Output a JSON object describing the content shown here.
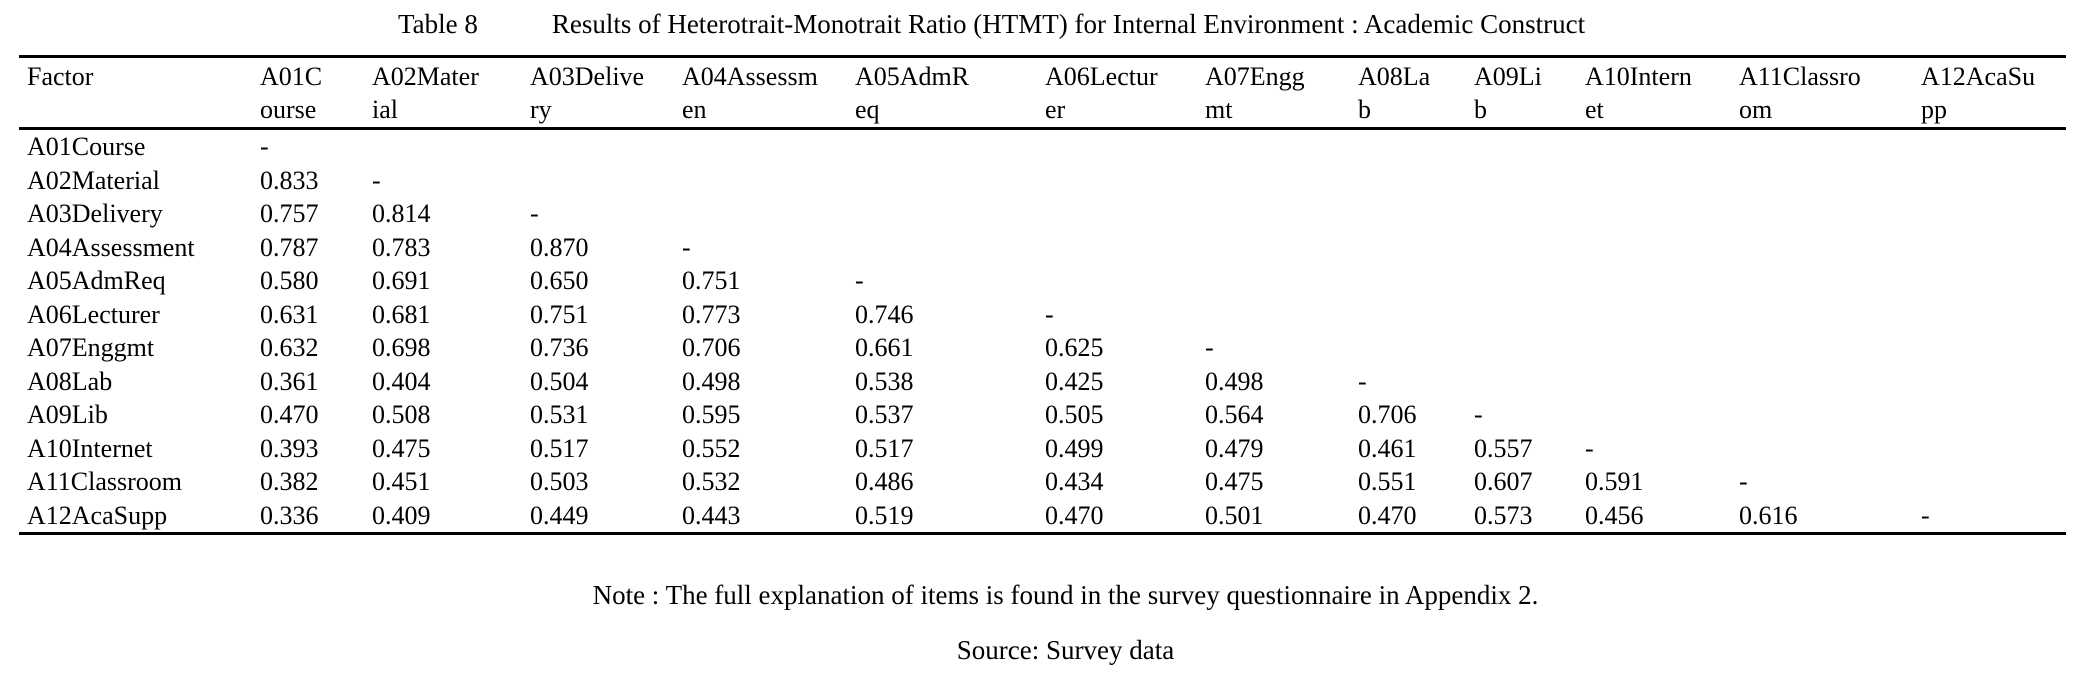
{
  "caption": {
    "number": "Table 8",
    "title": "Results of Heterotrait-Monotrait Ratio (HTMT) for Internal Environment : Academic Construct"
  },
  "table": {
    "header": {
      "factor": "Factor",
      "columns": [
        {
          "label": "A01Course",
          "lines": [
            "A01C",
            "ourse"
          ]
        },
        {
          "label": "A02Material",
          "lines": [
            "A02Mater",
            "ial"
          ]
        },
        {
          "label": "A03Delivery",
          "lines": [
            "A03Delive",
            "ry"
          ]
        },
        {
          "label": "A04Assessmen",
          "lines": [
            "A04Assessm",
            "en"
          ]
        },
        {
          "label": "A05AdmReq",
          "lines": [
            "A05AdmR",
            "eq"
          ]
        },
        {
          "label": "A06Lecturer",
          "lines": [
            "A06Lectur",
            "er"
          ]
        },
        {
          "label": "A07Enggmt",
          "lines": [
            "A07Engg",
            "mt"
          ]
        },
        {
          "label": "A08Lab",
          "lines": [
            "A08La",
            "b"
          ]
        },
        {
          "label": "A09Lib",
          "lines": [
            "A09Li",
            "b"
          ]
        },
        {
          "label": "A10Internet",
          "lines": [
            "A10Intern",
            "et"
          ]
        },
        {
          "label": "A11Classroom",
          "lines": [
            "A11Classro",
            "om"
          ]
        },
        {
          "label": "A12AcaSupp",
          "lines": [
            "A12AcaSu",
            "pp"
          ]
        }
      ]
    },
    "rows": [
      {
        "factor": "A01Course",
        "values": [
          "-"
        ]
      },
      {
        "factor": "A02Material",
        "values": [
          "0.833",
          "-"
        ]
      },
      {
        "factor": "A03Delivery",
        "values": [
          "0.757",
          "0.814",
          "-"
        ]
      },
      {
        "factor": "A04Assessment",
        "values": [
          "0.787",
          "0.783",
          "0.870",
          "-"
        ]
      },
      {
        "factor": "A05AdmReq",
        "values": [
          "0.580",
          "0.691",
          "0.650",
          "0.751",
          "-"
        ]
      },
      {
        "factor": "A06Lecturer",
        "values": [
          "0.631",
          "0.681",
          "0.751",
          "0.773",
          "0.746",
          "-"
        ]
      },
      {
        "factor": "A07Enggmt",
        "values": [
          "0.632",
          "0.698",
          "0.736",
          "0.706",
          "0.661",
          "0.625",
          "-"
        ]
      },
      {
        "factor": "A08Lab",
        "values": [
          "0.361",
          "0.404",
          "0.504",
          "0.498",
          "0.538",
          "0.425",
          "0.498",
          "-"
        ]
      },
      {
        "factor": "A09Lib",
        "values": [
          "0.470",
          "0.508",
          "0.531",
          "0.595",
          "0.537",
          "0.505",
          "0.564",
          "0.706",
          "-"
        ]
      },
      {
        "factor": "A10Internet",
        "values": [
          "0.393",
          "0.475",
          "0.517",
          "0.552",
          "0.517",
          "0.499",
          "0.479",
          "0.461",
          "0.557",
          "-"
        ]
      },
      {
        "factor": "A11Classroom",
        "values": [
          "0.382",
          "0.451",
          "0.503",
          "0.532",
          "0.486",
          "0.434",
          "0.475",
          "0.551",
          "0.607",
          "0.591",
          "-"
        ]
      },
      {
        "factor": "A12AcaSupp",
        "values": [
          "0.336",
          "0.409",
          "0.449",
          "0.443",
          "0.519",
          "0.470",
          "0.501",
          "0.470",
          "0.573",
          "0.456",
          "0.616",
          "-"
        ]
      }
    ]
  },
  "notes": {
    "note": "Note : The full explanation of items is found in the survey questionnaire in Appendix 2.",
    "source": "Source: Survey data"
  },
  "colors": {
    "text": "#000000",
    "background": "#ffffff",
    "rule": "#000000"
  },
  "chart_data": {
    "type": "table",
    "title": "Table 8 Results of Heterotrait-Monotrait Ratio (HTMT) for Internal Environment : Academic Construct",
    "columns": [
      "Factor",
      "A01Course",
      "A02Material",
      "A03Delivery",
      "A04Assessmen",
      "A05AdmReq",
      "A06Lecturer",
      "A07Enggmt",
      "A08Lab",
      "A09Lib",
      "A10Internet",
      "A11Classroom",
      "A12AcaSupp"
    ],
    "rows": [
      [
        "A01Course",
        "-",
        "",
        "",
        "",
        "",
        "",
        "",
        "",
        "",
        "",
        "",
        ""
      ],
      [
        "A02Material",
        "0.833",
        "-",
        "",
        "",
        "",
        "",
        "",
        "",
        "",
        "",
        "",
        ""
      ],
      [
        "A03Delivery",
        "0.757",
        "0.814",
        "-",
        "",
        "",
        "",
        "",
        "",
        "",
        "",
        "",
        ""
      ],
      [
        "A04Assessment",
        "0.787",
        "0.783",
        "0.870",
        "-",
        "",
        "",
        "",
        "",
        "",
        "",
        "",
        ""
      ],
      [
        "A05AdmReq",
        "0.580",
        "0.691",
        "0.650",
        "0.751",
        "-",
        "",
        "",
        "",
        "",
        "",
        "",
        ""
      ],
      [
        "A06Lecturer",
        "0.631",
        "0.681",
        "0.751",
        "0.773",
        "0.746",
        "-",
        "",
        "",
        "",
        "",
        "",
        ""
      ],
      [
        "A07Enggmt",
        "0.632",
        "0.698",
        "0.736",
        "0.706",
        "0.661",
        "0.625",
        "-",
        "",
        "",
        "",
        "",
        ""
      ],
      [
        "A08Lab",
        "0.361",
        "0.404",
        "0.504",
        "0.498",
        "0.538",
        "0.425",
        "0.498",
        "-",
        "",
        "",
        "",
        ""
      ],
      [
        "A09Lib",
        "0.470",
        "0.508",
        "0.531",
        "0.595",
        "0.537",
        "0.505",
        "0.564",
        "0.706",
        "-",
        "",
        "",
        ""
      ],
      [
        "A10Internet",
        "0.393",
        "0.475",
        "0.517",
        "0.552",
        "0.517",
        "0.499",
        "0.479",
        "0.461",
        "0.557",
        "-",
        "",
        ""
      ],
      [
        "A11Classroom",
        "0.382",
        "0.451",
        "0.503",
        "0.532",
        "0.486",
        "0.434",
        "0.475",
        "0.551",
        "0.607",
        "0.591",
        "-",
        ""
      ],
      [
        "A12AcaSupp",
        "0.336",
        "0.409",
        "0.449",
        "0.443",
        "0.519",
        "0.470",
        "0.501",
        "0.470",
        "0.573",
        "0.456",
        "0.616",
        "-"
      ]
    ]
  }
}
